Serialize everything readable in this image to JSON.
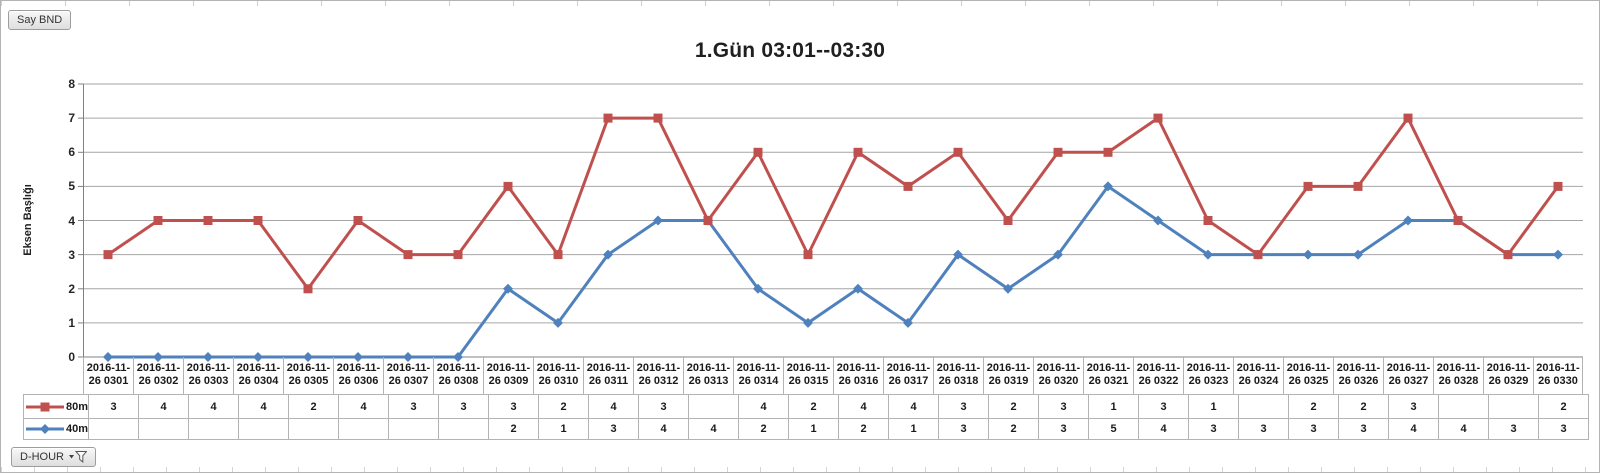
{
  "app": {
    "value_field_button": "Say BND",
    "axis_field_button": "D-HOUR"
  },
  "chart_data": {
    "type": "line",
    "subtype": "stacked",
    "title": "1.Gün 03:01--03:30",
    "xlabel": "",
    "ylabel": "Eksen Başlığı",
    "ylim": [
      0,
      8
    ],
    "yticks": [
      0,
      1,
      2,
      3,
      4,
      5,
      6,
      7,
      8
    ],
    "grid": true,
    "legend_position": "table-left",
    "colors": {
      "series_80m": "#C0504D",
      "series_40m": "#4F81BD",
      "gridline": "#A6A6A6",
      "axis": "#808080",
      "table_border": "#B3B3B3"
    },
    "categories": [
      "2016-11-26 0301",
      "2016-11-26 0302",
      "2016-11-26 0303",
      "2016-11-26 0304",
      "2016-11-26 0305",
      "2016-11-26 0306",
      "2016-11-26 0307",
      "2016-11-26 0308",
      "2016-11-26 0309",
      "2016-11-26 0310",
      "2016-11-26 0311",
      "2016-11-26 0312",
      "2016-11-26 0313",
      "2016-11-26 0314",
      "2016-11-26 0315",
      "2016-11-26 0316",
      "2016-11-26 0317",
      "2016-11-26 0318",
      "2016-11-26 0319",
      "2016-11-26 0320",
      "2016-11-26 0321",
      "2016-11-26 0322",
      "2016-11-26 0323",
      "2016-11-26 0324",
      "2016-11-26 0325",
      "2016-11-26 0326",
      "2016-11-26 0327",
      "2016-11-26 0328",
      "2016-11-26 0329",
      "2016-11-26 0330"
    ],
    "category_label_line1": "2016-11-",
    "category_label_line2": [
      "26 0301",
      "26 0302",
      "26 0303",
      "26 0304",
      "26 0305",
      "26 0306",
      "26 0307",
      "26 0308",
      "26 0309",
      "26 0310",
      "26 0311",
      "26 0312",
      "26 0313",
      "26 0314",
      "26 0315",
      "26 0316",
      "26 0317",
      "26 0318",
      "26 0319",
      "26 0320",
      "26 0321",
      "26 0322",
      "26 0323",
      "26 0324",
      "26 0325",
      "26 0326",
      "26 0327",
      "26 0328",
      "26 0329",
      "26 0330"
    ],
    "series": [
      {
        "name": "80m",
        "color": "#C0504D",
        "marker": "square",
        "table_values": [
          3,
          4,
          4,
          4,
          2,
          4,
          3,
          3,
          3,
          2,
          4,
          3,
          null,
          4,
          2,
          4,
          4,
          3,
          2,
          3,
          1,
          3,
          1,
          null,
          2,
          2,
          3,
          null,
          null,
          2
        ],
        "plotted_values": [
          3,
          4,
          4,
          4,
          2,
          4,
          3,
          3,
          5,
          3,
          7,
          7,
          4,
          6,
          3,
          6,
          5,
          6,
          4,
          6,
          6,
          7,
          4,
          3,
          5,
          5,
          7,
          4,
          3,
          5
        ]
      },
      {
        "name": "40m",
        "color": "#4F81BD",
        "marker": "diamond",
        "table_values": [
          null,
          null,
          null,
          null,
          null,
          null,
          null,
          null,
          2,
          1,
          3,
          4,
          4,
          2,
          1,
          2,
          1,
          3,
          2,
          3,
          5,
          4,
          3,
          3,
          3,
          3,
          4,
          4,
          3,
          3
        ],
        "plotted_values": [
          0,
          0,
          0,
          0,
          0,
          0,
          0,
          0,
          2,
          1,
          3,
          4,
          4,
          2,
          1,
          2,
          1,
          3,
          2,
          3,
          5,
          4,
          3,
          3,
          3,
          3,
          4,
          4,
          3,
          3
        ]
      }
    ]
  }
}
